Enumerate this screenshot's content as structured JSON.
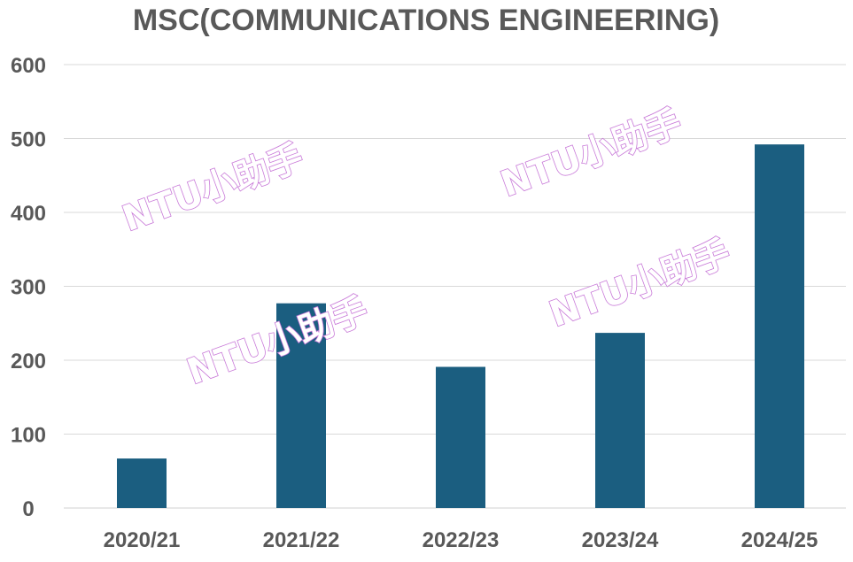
{
  "chart_data": {
    "type": "bar",
    "title": "MSC(COMMUNICATIONS ENGINEERING)",
    "categories": [
      "2020/21",
      "2021/22",
      "2022/23",
      "2023/24",
      "2024/25"
    ],
    "series": [
      {
        "values": [
          67,
          277,
          191,
          237,
          492
        ]
      }
    ],
    "xlabel": "",
    "ylabel": "",
    "ylim": [
      0,
      600
    ],
    "yticks": [
      0,
      100,
      200,
      300,
      400,
      500,
      600
    ],
    "grid": true,
    "legend": "none",
    "colors": {
      "bar": "#1b5e80",
      "text": "#595959",
      "grid": "#d9d9d9",
      "watermark_outline": "#c879d8"
    }
  },
  "watermark": {
    "text": "NTU小助手"
  }
}
